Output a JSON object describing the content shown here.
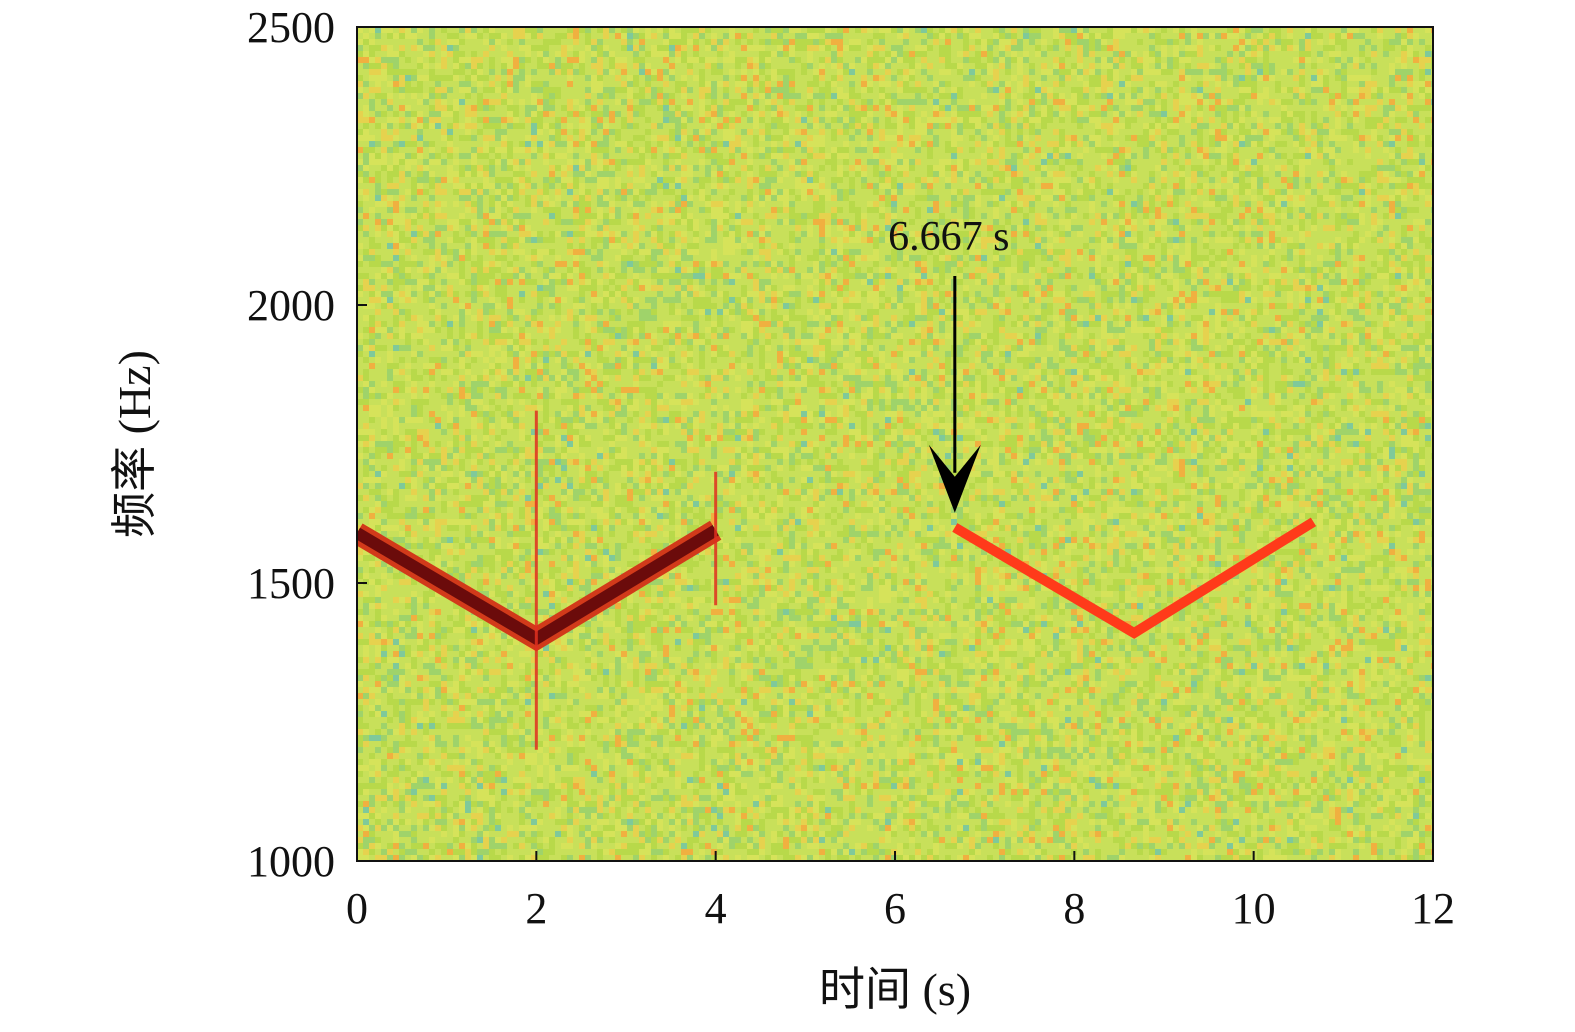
{
  "chart_data": {
    "type": "heatmap",
    "subtype": "spectrogram",
    "title": "",
    "xlabel": "时间 (s)",
    "ylabel": "频率 (Hz)",
    "xlim": [
      0,
      12
    ],
    "ylim": [
      1000,
      2500
    ],
    "xticks": [
      0,
      2,
      4,
      6,
      8,
      10,
      12
    ],
    "yticks": [
      1000,
      1500,
      2000,
      2500
    ],
    "grid": false,
    "colormap": {
      "background": "#c8e05a",
      "noise_colors": [
        "#b8d94a",
        "#d6e35a",
        "#9fd36a",
        "#e6d24e",
        "#f0b040",
        "#7fc99a"
      ],
      "strong_signal": "#5a0a0a",
      "medium_signal": "#ff3a1a"
    },
    "series": [
      {
        "strength": "strong",
        "color": "#6b0b0b",
        "x": [
          0,
          2,
          4
        ],
        "y": [
          1590,
          1400,
          1595
        ]
      },
      {
        "strength": "medium",
        "color": "#ff3a1a",
        "x": [
          6.667,
          8.667,
          10.667
        ],
        "y": [
          1600,
          1410,
          1610
        ]
      }
    ],
    "transients": [
      {
        "x": 2,
        "y_range": [
          1200,
          1810
        ],
        "color": "#e03020"
      },
      {
        "x": 4,
        "y_range": [
          1460,
          1700
        ],
        "color": "#e03020"
      }
    ],
    "annotations": [
      {
        "text": "6.667 s",
        "x": 6.667,
        "y": 1630,
        "arrow": "down"
      }
    ]
  }
}
